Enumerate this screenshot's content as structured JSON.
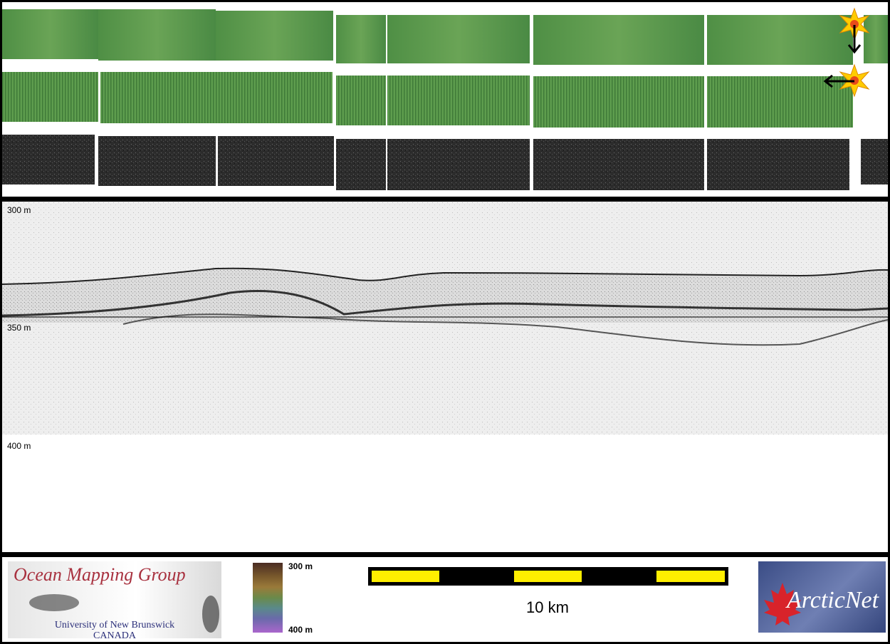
{
  "profile": {
    "depth_labels": [
      "300 m",
      "350 m",
      "400 m"
    ]
  },
  "legend": {
    "organization": {
      "name": "Ocean Mapping Group",
      "university": "University of New Brunswick",
      "country": "CANADA"
    },
    "colorbar": {
      "top_label": "300 m",
      "bottom_label": "400 m"
    },
    "scale_bar": {
      "label": "10 km",
      "fill_color": "#ffee00"
    },
    "partner_logo": "ArcticNet"
  },
  "colors": {
    "bathymetry_green": "#5f9a4e",
    "backscatter_gray": "#2e2e2e",
    "sun_icon": "#ffcc00",
    "logo_red": "#a8313f",
    "logo_blue": "#2b2f7a"
  },
  "icons": [
    "sun-illumination-icon",
    "arrow-down-icon",
    "arrow-left-icon",
    "maple-leaf-icon"
  ]
}
